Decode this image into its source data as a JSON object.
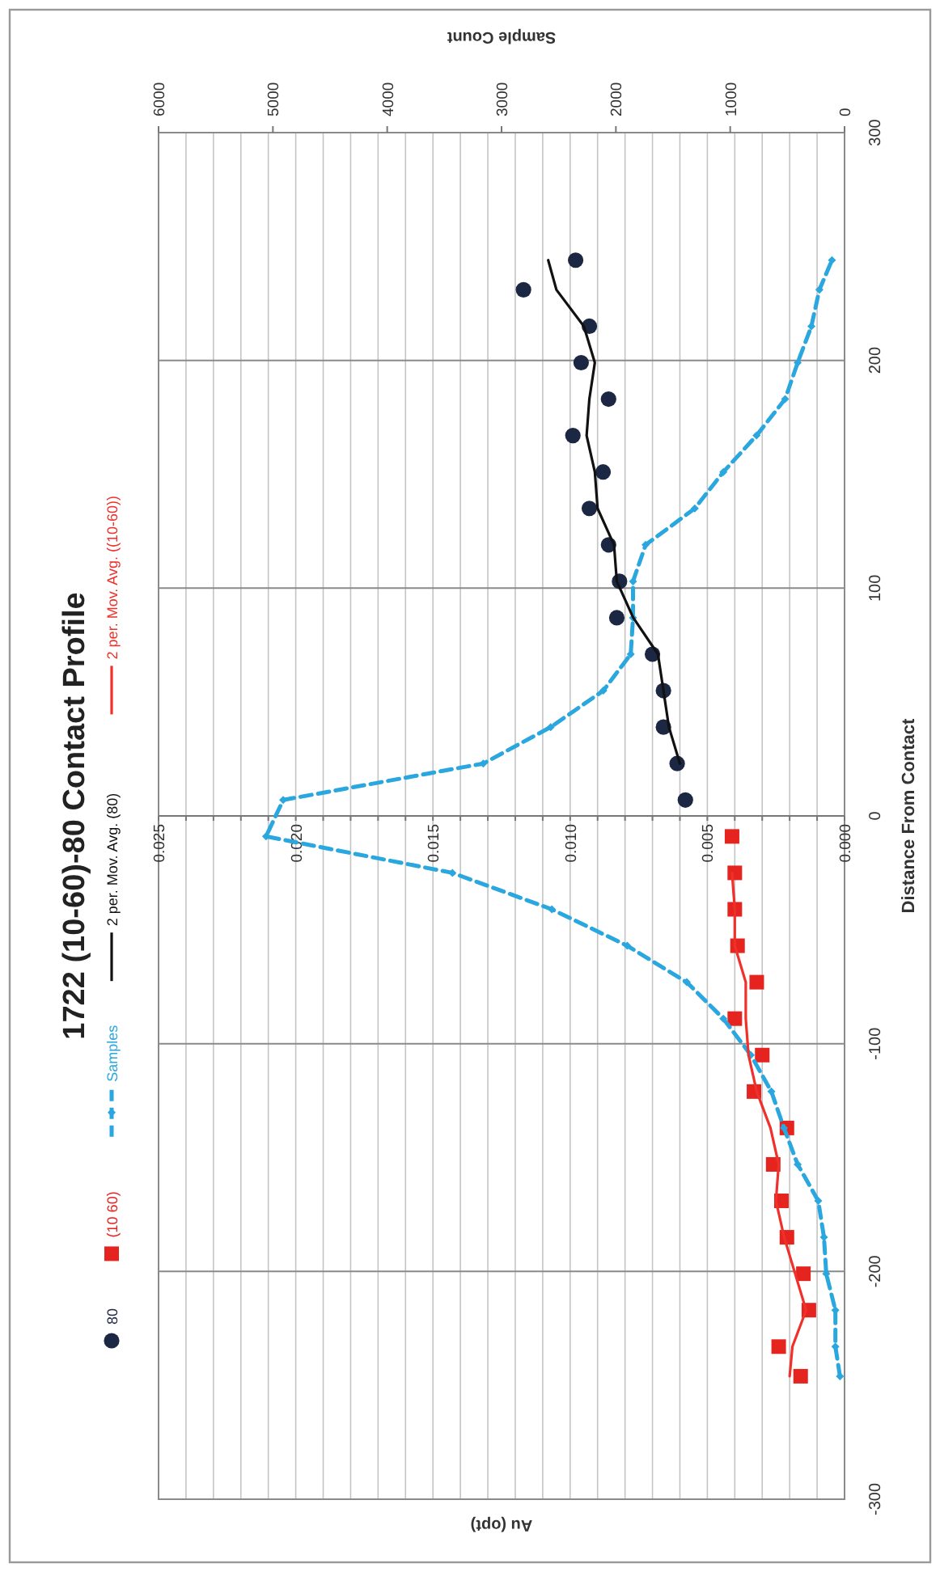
{
  "chart_data": {
    "type": "scatter",
    "title": "1722 (10-60)-80 Contact Profile",
    "xlabel": "Au (opt)",
    "ylabel": "Distance From Contact",
    "x2label": "Sample Count",
    "ylim": [
      -300,
      300
    ],
    "yticks": [
      -300,
      -200,
      -100,
      0,
      100,
      200,
      300
    ],
    "xlim": [
      0.025,
      0
    ],
    "xticks": [
      {
        "value": 0,
        "label": "0.000"
      },
      {
        "value": 0.001,
        "label": null
      },
      {
        "value": 0.002,
        "label": null
      },
      {
        "value": 0.003,
        "label": null
      },
      {
        "value": 0.004,
        "label": null
      },
      {
        "value": 0.005,
        "label": "0.005"
      },
      {
        "value": 0.006,
        "label": null
      },
      {
        "value": 0.007,
        "label": null
      },
      {
        "value": 0.008,
        "label": null
      },
      {
        "value": 0.009,
        "label": null
      },
      {
        "value": 0.01,
        "label": "0.010"
      },
      {
        "value": 0.011,
        "label": null
      },
      {
        "value": 0.012,
        "label": null
      },
      {
        "value": 0.013,
        "label": null
      },
      {
        "value": 0.014,
        "label": null
      },
      {
        "value": 0.015,
        "label": "0.015"
      },
      {
        "value": 0.016,
        "label": null
      },
      {
        "value": 0.017,
        "label": null
      },
      {
        "value": 0.018,
        "label": null
      },
      {
        "value": 0.019,
        "label": null
      },
      {
        "value": 0.02,
        "label": "0.020"
      },
      {
        "value": 0.021,
        "label": null
      },
      {
        "value": 0.022,
        "label": null
      },
      {
        "value": 0.023,
        "label": null
      },
      {
        "value": 0.024,
        "label": null
      },
      {
        "value": 0.025,
        "label": "0.025"
      }
    ],
    "x2lim": [
      6000,
      0
    ],
    "x2ticks": [
      0,
      1000,
      2000,
      3000,
      4000,
      5000,
      6000
    ],
    "grid": true,
    "legend": "left",
    "series": [
      {
        "name": "80",
        "marker": "circle",
        "color": "#1c2743",
        "values": [
          7,
          23,
          39,
          55,
          71,
          87,
          103,
          119,
          135,
          151,
          167,
          183,
          199,
          215,
          231,
          244
        ],
        "x": [
          0.0058,
          0.0061,
          0.0066,
          0.0066,
          0.007,
          0.0083,
          0.0082,
          0.0086,
          0.0093,
          0.0088,
          0.0099,
          0.0086,
          0.0096,
          0.0093,
          0.0117,
          0.0098
        ]
      },
      {
        "name": "(10 60)",
        "marker": "square",
        "color": "#e5231f",
        "values": [
          -9,
          -25,
          -41,
          -57,
          -73,
          -89,
          -105,
          -121,
          -137,
          -153,
          -169,
          -185,
          -201,
          -217,
          -233,
          -246
        ],
        "x": [
          0.0041,
          0.004,
          0.004,
          0.0039,
          0.0032,
          0.004,
          0.003,
          0.0033,
          0.0021,
          0.0026,
          0.0023,
          0.0021,
          0.0015,
          0.0013,
          0.0024,
          0.0016
        ]
      },
      {
        "name": "Samples",
        "type": "line",
        "axis": "x2",
        "marker": "diamond",
        "line_style": "dashed",
        "color": "#2aa7df",
        "values": [
          -246,
          -233,
          -217,
          -201,
          -185,
          -169,
          -153,
          -137,
          -121,
          -105,
          -89,
          -73,
          -57,
          -41,
          -25,
          -9,
          7,
          23,
          39,
          55,
          71,
          87,
          103,
          119,
          135,
          151,
          167,
          183,
          199,
          215,
          231,
          244
        ],
        "x": [
          40,
          80,
          80,
          160,
          180,
          230,
          410,
          530,
          640,
          820,
          1060,
          1380,
          1900,
          2560,
          3430,
          5060,
          4910,
          3160,
          2570,
          2110,
          1870,
          1850,
          1850,
          1740,
          1310,
          1060,
          770,
          520,
          410,
          290,
          220,
          110
        ]
      },
      {
        "name": "2 per. Mov. Avg. (80)",
        "type": "line",
        "marker": "none",
        "line_style": "solid",
        "color": "#111111",
        "values": [
          23,
          39,
          55,
          71,
          87,
          103,
          119,
          135,
          151,
          167,
          183,
          199,
          215,
          231,
          244
        ],
        "x": [
          0.006,
          0.0064,
          0.0066,
          0.0068,
          0.0077,
          0.0083,
          0.0084,
          0.009,
          0.0091,
          0.0094,
          0.0093,
          0.0091,
          0.0095,
          0.0105,
          0.0108
        ]
      },
      {
        "name": "2 per. Mov. Avg. ((10-60))",
        "type": "line",
        "marker": "none",
        "line_style": "solid",
        "color": "#f0302a",
        "values": [
          -25,
          -41,
          -57,
          -73,
          -89,
          -105,
          -121,
          -137,
          -153,
          -169,
          -185,
          -201,
          -217,
          -233,
          -246
        ],
        "x": [
          0.0041,
          0.004,
          0.004,
          0.0036,
          0.0036,
          0.0035,
          0.0032,
          0.0027,
          0.0024,
          0.0025,
          0.0022,
          0.0018,
          0.0014,
          0.0019,
          0.002
        ]
      }
    ]
  }
}
